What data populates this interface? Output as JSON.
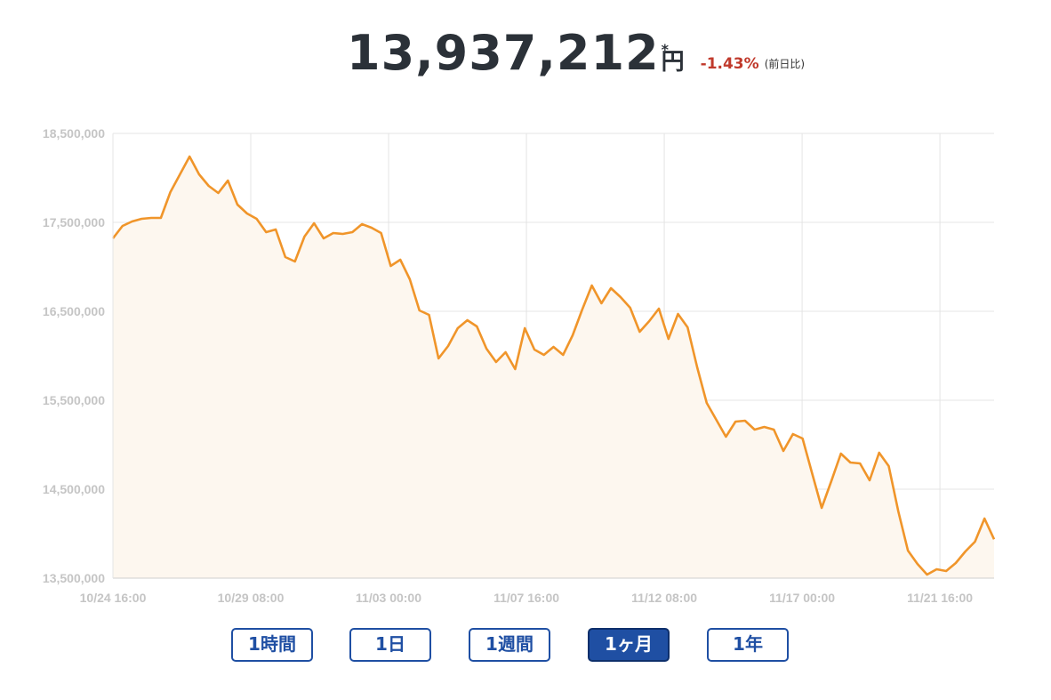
{
  "header": {
    "price": "13,937,212",
    "asterisk": "*",
    "unit": "円",
    "change_pct": "-1.43%",
    "change_label": "(前日比)"
  },
  "colors": {
    "line": "#f0952a",
    "fill": "#fdf7ef",
    "grid": "#e4e4e4",
    "tick_text": "#c5c5c5",
    "negative": "#c0392b",
    "button": "#1f4fa3"
  },
  "range_buttons": [
    {
      "label": "1時間",
      "active": false
    },
    {
      "label": "1日",
      "active": false
    },
    {
      "label": "1週間",
      "active": false
    },
    {
      "label": "1ヶ月",
      "active": true
    },
    {
      "label": "1年",
      "active": false
    }
  ],
  "chart_data": {
    "type": "area",
    "title": "",
    "xlabel": "",
    "ylabel": "",
    "ylim": [
      13500000,
      18500000
    ],
    "xlim": [
      "2024-10-24 16:00",
      "2024-11-23 12:00"
    ],
    "y_ticks": [
      "18,500,000",
      "17,500,000",
      "16,500,000",
      "15,500,000",
      "14,500,000",
      "13,500,000"
    ],
    "y_tick_values": [
      18500000,
      17500000,
      16500000,
      15500000,
      14500000,
      13500000
    ],
    "x_ticks": [
      "10/24 16:00",
      "10/29 08:00",
      "11/03 00:00",
      "11/07 16:00",
      "11/12 08:00",
      "11/17 00:00",
      "11/21 16:00"
    ],
    "grid": true,
    "legend": "none",
    "series": [
      {
        "values": [
          17320000,
          17460000,
          17510000,
          17540000,
          17550000,
          17550000,
          17840000,
          18040000,
          18240000,
          18040000,
          17910000,
          17830000,
          17970000,
          17700000,
          17600000,
          17540000,
          17390000,
          17420000,
          17110000,
          17060000,
          17340000,
          17490000,
          17320000,
          17380000,
          17370000,
          17390000,
          17480000,
          17440000,
          17380000,
          17010000,
          17080000,
          16860000,
          16510000,
          16460000,
          15970000,
          16110000,
          16310000,
          16400000,
          16330000,
          16080000,
          15930000,
          16040000,
          15850000,
          16310000,
          16070000,
          16010000,
          16100000,
          16010000,
          16230000,
          16520000,
          16790000,
          16590000,
          16760000,
          16660000,
          16540000,
          16270000,
          16390000,
          16530000,
          16190000,
          16470000,
          16320000,
          15870000,
          15470000,
          15280000,
          15090000,
          15260000,
          15270000,
          15170000,
          15200000,
          15170000,
          14930000,
          15120000,
          15070000,
          14680000,
          14290000,
          14590000,
          14900000,
          14800000,
          14790000,
          14600000,
          14910000,
          14760000,
          14250000,
          13810000,
          13660000,
          13540000,
          13600000,
          13580000,
          13670000,
          13800000,
          13910000,
          14170000,
          13937212
        ]
      }
    ]
  }
}
